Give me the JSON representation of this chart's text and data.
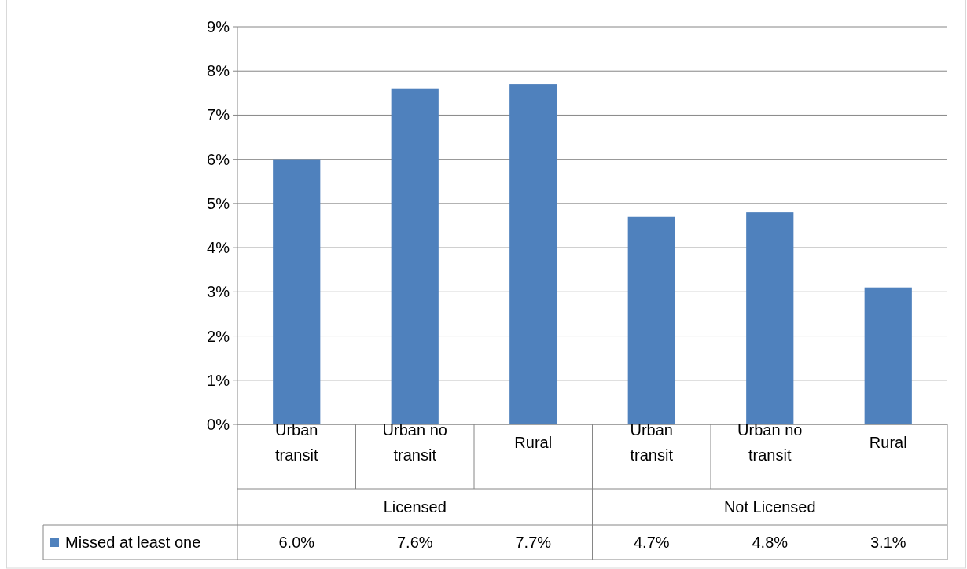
{
  "chart_data": {
    "type": "bar",
    "categories": [
      "Urban transit",
      "Urban no transit",
      "Rural",
      "Urban transit",
      "Urban no transit",
      "Rural"
    ],
    "series": [
      {
        "name": "Missed at least one",
        "color": "#4f81bd",
        "values": [
          6.0,
          7.6,
          7.7,
          4.7,
          4.8,
          3.1
        ],
        "value_labels": [
          "6.0%",
          "7.6%",
          "7.7%",
          "4.7%",
          "4.8%",
          "3.1%"
        ]
      }
    ],
    "annotations": [
      "Licensed",
      "Not Licensed"
    ],
    "ylim": [
      0,
      9
    ],
    "yticks": [
      {
        "value": 0,
        "label": "0%"
      },
      {
        "value": 1,
        "label": "1%"
      },
      {
        "value": 2,
        "label": "2%"
      },
      {
        "value": 3,
        "label": "3%"
      },
      {
        "value": 4,
        "label": "4%"
      },
      {
        "value": 5,
        "label": "5%"
      },
      {
        "value": 6,
        "label": "6%"
      },
      {
        "value": 7,
        "label": "7%"
      },
      {
        "value": 8,
        "label": "8%"
      },
      {
        "value": 9,
        "label": "9%"
      }
    ],
    "grid": "y",
    "legend": "bottom"
  }
}
